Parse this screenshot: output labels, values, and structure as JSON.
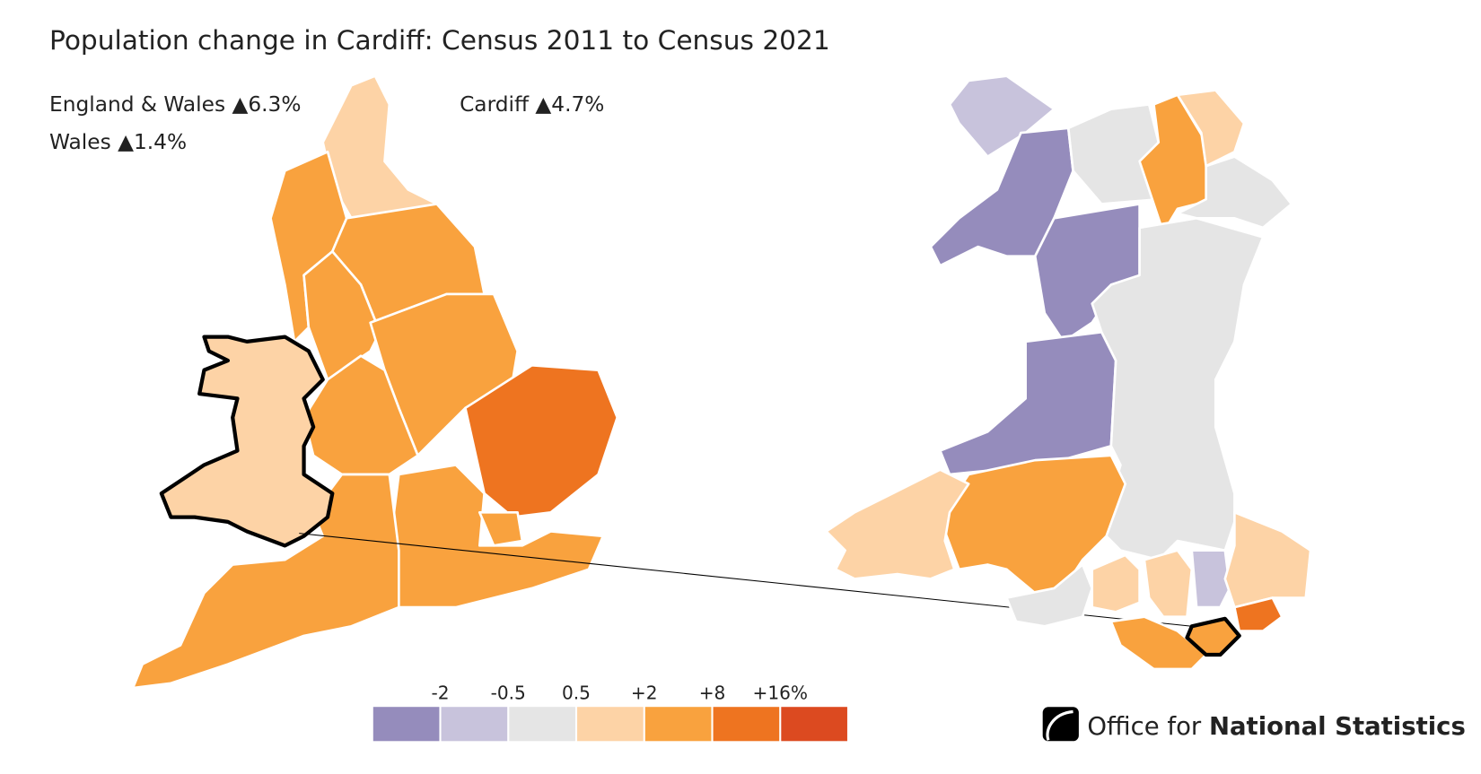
{
  "header": {
    "title": "Population change in Cardiff: Census 2011 to Census 2021"
  },
  "stats": [
    "England & Wales ▲6.3%",
    "Wales ▲1.4%",
    "Cardiff ▲4.7%"
  ],
  "legend": {
    "colors": [
      "#958cbc",
      "#c8c3dc",
      "#e5e5e5",
      "#fdd3a6",
      "#f9a23e",
      "#ee7420",
      "#dc4a20"
    ],
    "ticks": [
      "-2",
      "-0.5",
      "0.5",
      "+2",
      "+8",
      "+16%"
    ]
  },
  "logo": {
    "prefix": "Office for",
    "name": "National Statistics"
  }
}
